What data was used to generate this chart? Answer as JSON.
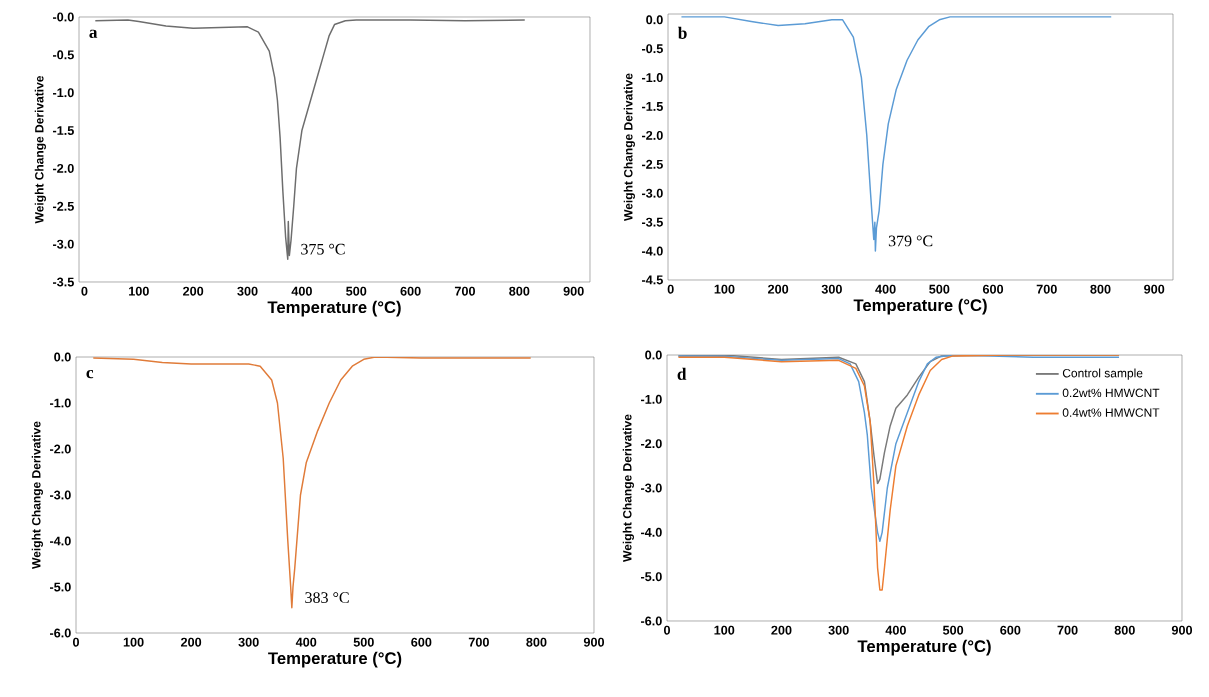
{
  "chart_data": [
    {
      "type": "line",
      "xlabel": "Temperature (°C)",
      "ylabel": "Weight Change Derivative",
      "color": "#6d6d6d",
      "x": [
        20,
        80,
        100,
        150,
        200,
        250,
        300,
        320,
        340,
        350,
        355,
        360,
        365,
        370,
        372,
        374,
        375,
        377,
        380,
        385,
        390,
        400,
        410,
        420,
        430,
        440,
        450,
        460,
        480,
        500,
        600,
        700,
        810
      ],
      "values": [
        -0.05,
        -0.04,
        -0.06,
        -0.12,
        -0.15,
        -0.14,
        -0.13,
        -0.2,
        -0.45,
        -0.8,
        -1.1,
        -1.6,
        -2.3,
        -2.9,
        -3.05,
        -3.2,
        -2.7,
        -3.15,
        -2.95,
        -2.5,
        -2.0,
        -1.5,
        -1.25,
        -1.0,
        -0.75,
        -0.5,
        -0.25,
        -0.1,
        -0.05,
        -0.04,
        -0.04,
        -0.05,
        -0.04
      ],
      "xlim": [
        -10,
        930
      ],
      "xticks": [
        0,
        100,
        200,
        300,
        400,
        500,
        600,
        700,
        800,
        900
      ],
      "ylim": [
        -3.5,
        0
      ],
      "yticks": [
        {
          "value": -3.5,
          "label": "-3.5"
        },
        {
          "value": -3.0,
          "label": "-3.0"
        },
        {
          "value": -2.5,
          "label": "-2.5"
        },
        {
          "value": -2.0,
          "label": "-2.0"
        },
        {
          "value": -1.5,
          "label": "-1.5"
        },
        {
          "value": -1.0,
          "label": "-1.0"
        },
        {
          "value": -0.5,
          "label": "-0.5"
        },
        {
          "value": 0,
          "label": "-0.0"
        }
      ],
      "annotations": [
        "a",
        "375 °C"
      ]
    },
    {
      "type": "line",
      "xlabel": "Temperature (°C)",
      "ylabel": "Weight Change Derivative",
      "color": "#5b9bd5",
      "x": [
        20,
        100,
        150,
        200,
        250,
        300,
        320,
        340,
        355,
        365,
        372,
        378,
        380,
        381,
        383,
        388,
        395,
        405,
        420,
        440,
        460,
        480,
        500,
        520,
        600,
        820
      ],
      "values": [
        0.05,
        0.05,
        -0.03,
        -0.1,
        -0.07,
        0.0,
        0.0,
        -0.3,
        -1.0,
        -2.0,
        -3.0,
        -3.8,
        -3.5,
        -4.0,
        -3.6,
        -3.3,
        -2.5,
        -1.8,
        -1.2,
        -0.7,
        -0.35,
        -0.12,
        0.0,
        0.05,
        0.05,
        0.05
      ],
      "xlim": [
        -5,
        935
      ],
      "xticks": [
        0,
        100,
        200,
        300,
        400,
        500,
        600,
        700,
        800,
        900
      ],
      "ylim": [
        -4.5,
        0.1
      ],
      "yticks": [
        {
          "value": -4.5,
          "label": "-4.5"
        },
        {
          "value": -4.0,
          "label": "-4.0"
        },
        {
          "value": -3.5,
          "label": "-3.5"
        },
        {
          "value": -3.0,
          "label": "-3.0"
        },
        {
          "value": -2.5,
          "label": "-2.5"
        },
        {
          "value": -2.0,
          "label": "-2.0"
        },
        {
          "value": -1.5,
          "label": "-1.5"
        },
        {
          "value": -1.0,
          "label": "-1.0"
        },
        {
          "value": -0.5,
          "label": "-0.5"
        },
        {
          "value": 0,
          "label": "0.0"
        }
      ],
      "annotations": [
        "b",
        "379 °C"
      ]
    },
    {
      "type": "line",
      "xlabel": "Temperature (°C)",
      "ylabel": "Weight Change Derivative",
      "color": "#e07b39",
      "x": [
        30,
        100,
        150,
        200,
        300,
        320,
        340,
        350,
        360,
        368,
        373,
        375,
        377,
        380,
        390,
        400,
        420,
        440,
        460,
        480,
        500,
        520,
        600,
        790
      ],
      "values": [
        -0.02,
        -0.05,
        -0.12,
        -0.15,
        -0.15,
        -0.2,
        -0.5,
        -1.0,
        -2.2,
        -4.0,
        -5.0,
        -5.45,
        -5.0,
        -4.6,
        -3.0,
        -2.3,
        -1.6,
        -1.0,
        -0.5,
        -0.2,
        -0.05,
        0.0,
        -0.02,
        -0.02
      ],
      "xlim": [
        0,
        900
      ],
      "xticks": [
        0,
        100,
        200,
        300,
        400,
        500,
        600,
        700,
        800,
        900
      ],
      "ylim": [
        -6,
        0
      ],
      "yticks": [
        {
          "value": -6,
          "label": "-6.0"
        },
        {
          "value": -5,
          "label": "-5.0"
        },
        {
          "value": -4,
          "label": "-4.0"
        },
        {
          "value": -3,
          "label": "-3.0"
        },
        {
          "value": -2,
          "label": "-2.0"
        },
        {
          "value": -1,
          "label": "-1.0"
        },
        {
          "value": 0,
          "label": "0.0"
        }
      ],
      "annotations": [
        "c",
        "383 °C"
      ]
    },
    {
      "type": "line",
      "xlabel": "Temperature (°C)",
      "ylabel": "Weight Change Derivative",
      "legend": "top right",
      "series": [
        {
          "name": "Control sample",
          "color": "#7a7a7a",
          "x": [
            20,
            100,
            200,
            300,
            330,
            345,
            355,
            362,
            368,
            372,
            380,
            390,
            400,
            420,
            440,
            460,
            480,
            600,
            790
          ],
          "values": [
            -0.02,
            0,
            -0.1,
            -0.05,
            -0.2,
            -0.6,
            -1.5,
            -2.3,
            -2.9,
            -2.8,
            -2.2,
            -1.6,
            -1.2,
            -0.9,
            -0.5,
            -0.15,
            -0.02,
            0,
            0
          ]
        },
        {
          "name": "0.2wt% HMWCNT",
          "color": "#5b9bd5",
          "x": [
            20,
            100,
            200,
            300,
            320,
            335,
            345,
            350,
            357,
            368,
            372,
            376,
            385,
            400,
            420,
            440,
            455,
            470,
            500,
            640,
            790
          ],
          "values": [
            -0.02,
            -0.03,
            -0.12,
            -0.08,
            -0.2,
            -0.6,
            -1.3,
            -1.8,
            -3.0,
            -4.0,
            -4.2,
            -4.0,
            -3.0,
            -2.0,
            -1.3,
            -0.6,
            -0.2,
            -0.05,
            0,
            -0.05,
            -0.05
          ]
        },
        {
          "name": "0.4wt% HMWCNT",
          "color": "#ed7d31",
          "x": [
            20,
            100,
            200,
            300,
            330,
            345,
            355,
            362,
            368,
            372,
            376,
            380,
            390,
            400,
            420,
            440,
            460,
            480,
            500,
            600,
            790
          ],
          "values": [
            -0.05,
            -0.05,
            -0.15,
            -0.12,
            -0.3,
            -0.7,
            -1.5,
            -3.0,
            -4.8,
            -5.3,
            -5.3,
            -4.8,
            -3.5,
            -2.5,
            -1.6,
            -0.9,
            -0.35,
            -0.1,
            -0.02,
            0,
            0
          ]
        }
      ],
      "xlim": [
        0,
        900
      ],
      "xticks": [
        0,
        100,
        200,
        300,
        400,
        500,
        600,
        700,
        800,
        900
      ],
      "ylim": [
        -6,
        0
      ],
      "yticks": [
        {
          "value": -6,
          "label": "-6.0"
        },
        {
          "value": -5,
          "label": "-5.0"
        },
        {
          "value": -4,
          "label": "-4.0"
        },
        {
          "value": -3,
          "label": "-3.0"
        },
        {
          "value": -2,
          "label": "-2.0"
        },
        {
          "value": -1,
          "label": "-1.0"
        },
        {
          "value": 0,
          "label": "0.0"
        }
      ],
      "annotations": [
        "d"
      ]
    }
  ]
}
